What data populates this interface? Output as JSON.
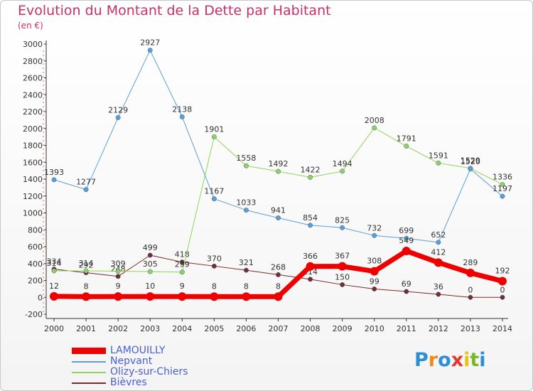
{
  "title": "Evolution du Montant de la Dette par Habitant",
  "subtitle": "(en €)",
  "logo": {
    "letters": [
      "P",
      "r",
      "o",
      "x",
      "i",
      "t",
      "i"
    ],
    "colors": [
      "#2a8fd6",
      "#f08a1c",
      "#2a8fd6",
      "#e8372a",
      "#f0c010",
      "#7ab82a",
      "#2a8fd6"
    ]
  },
  "chart_data": {
    "type": "line",
    "x": [
      "2000",
      "2001",
      "2002",
      "2003",
      "2004",
      "2005",
      "2006",
      "2007",
      "2008",
      "2009",
      "2010",
      "2011",
      "2012",
      "2013",
      "2014"
    ],
    "ylim": [
      -200,
      3000
    ],
    "yticks": [
      -200,
      0,
      200,
      400,
      600,
      800,
      1000,
      1200,
      1400,
      1600,
      1800,
      2000,
      2200,
      2400,
      2600,
      2800,
      3000
    ],
    "grid": false,
    "legend_position": "bottom-left",
    "series": [
      {
        "name": "Bièvres",
        "color": "#7a2b2b",
        "width": 1,
        "values": [
          334,
          292,
          248,
          499,
          418,
          370,
          321,
          268,
          214,
          150,
          99,
          69,
          36,
          0,
          0
        ],
        "labels": [
          "334",
          "292",
          "248",
          "499",
          "418",
          "370",
          "321",
          "268",
          "214",
          "150",
          "99",
          "69",
          "36",
          "0",
          "0"
        ]
      },
      {
        "name": "Olizy-sur-Chiers",
        "color": "#8fd45a",
        "width": 1,
        "values": [
          314,
          314,
          309,
          305,
          299,
          1901,
          1558,
          1492,
          1422,
          1494,
          2008,
          1791,
          1591,
          1529,
          1336
        ],
        "labels": [
          "314",
          "314",
          "309",
          "305",
          "299",
          "1901",
          "1558",
          "1492",
          "1422",
          "1494",
          "2008",
          "1791",
          "1591",
          "1529",
          "1336"
        ]
      },
      {
        "name": "Nepvant",
        "color": "#5b9fd6",
        "width": 1,
        "values": [
          1393,
          1277,
          2129,
          2927,
          2138,
          1167,
          1033,
          941,
          854,
          825,
          732,
          699,
          652,
          1520,
          1197
        ],
        "labels": [
          "1393",
          "1277",
          "2129",
          "2927",
          "2138",
          "1167",
          "1033",
          "941",
          "854",
          "825",
          "732",
          "699",
          "652",
          "1520",
          "1197"
        ]
      },
      {
        "name": "LAMOUILLY",
        "color": "#ee0000",
        "width": 7,
        "values": [
          12,
          8,
          9,
          10,
          9,
          8,
          8,
          8,
          366,
          367,
          308,
          549,
          412,
          289,
          192
        ],
        "labels": [
          "12",
          "8",
          "9",
          "10",
          "9",
          "8",
          "8",
          "8",
          "366",
          "367",
          "308",
          "549",
          "412",
          "289",
          "192"
        ]
      }
    ],
    "legend_order": [
      "LAMOUILLY",
      "Nepvant",
      "Olizy-sur-Chiers",
      "Bièvres"
    ]
  }
}
